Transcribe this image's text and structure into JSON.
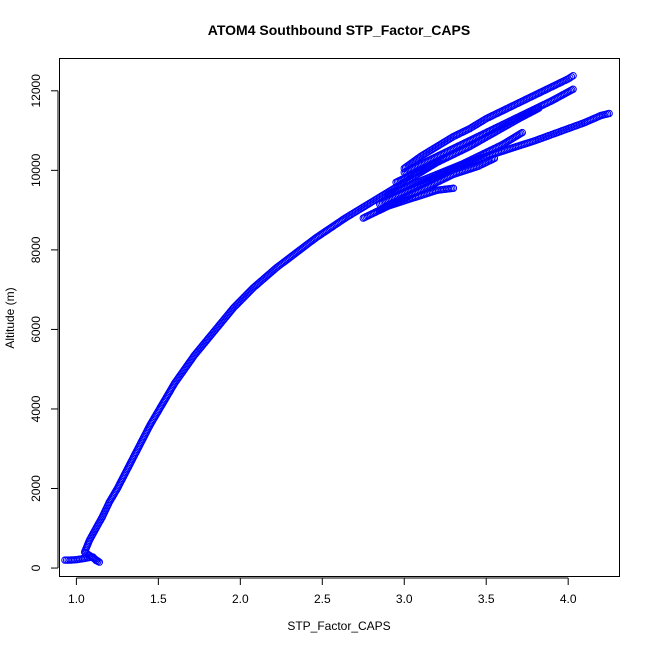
{
  "chart_data": {
    "type": "scatter",
    "title": "ATOM4 Southbound STP_Factor_CAPS",
    "xlabel": "STP_Factor_CAPS",
    "ylabel": "Altitude (m)",
    "xlim": [
      0.9,
      4.31
    ],
    "ylim": [
      -200,
      12800
    ],
    "xticks": [
      1.0,
      1.5,
      2.0,
      2.5,
      3.0,
      3.5,
      4.0
    ],
    "xtick_labels": [
      "1.0",
      "1.5",
      "2.0",
      "2.5",
      "3.0",
      "3.5",
      "4.0"
    ],
    "yticks": [
      0,
      2000,
      4000,
      6000,
      8000,
      10000,
      12000
    ],
    "ytick_labels": [
      "0",
      "2000",
      "4000",
      "6000",
      "8000",
      "10000",
      "12000"
    ],
    "marker": "open-circle",
    "color": "#0000ff",
    "grid": false,
    "series": [
      {
        "x": [
          0.93,
          0.96,
          1.0,
          1.03,
          1.06,
          1.1,
          1.12,
          1.14,
          1.05,
          1.08,
          1.12,
          1.16,
          1.2,
          1.25,
          1.3,
          1.35,
          1.4,
          1.45,
          1.5,
          1.55,
          1.6,
          1.66,
          1.72,
          1.78,
          1.84,
          1.9,
          1.96,
          2.02,
          2.08,
          2.15,
          2.22,
          2.3,
          2.38,
          2.46,
          2.55,
          2.64,
          2.74,
          2.84,
          2.94,
          3.04,
          3.14,
          3.24
        ],
        "y": [
          200,
          200,
          210,
          230,
          250,
          280,
          190,
          150,
          400,
          700,
          1000,
          1300,
          1650,
          2000,
          2400,
          2800,
          3200,
          3600,
          3950,
          4300,
          4650,
          5000,
          5350,
          5650,
          5950,
          6250,
          6550,
          6800,
          7050,
          7300,
          7550,
          7800,
          8050,
          8300,
          8550,
          8800,
          9050,
          9300,
          9550,
          9800,
          10050,
          10300
        ]
      },
      {
        "x": [
          3.0,
          3.1,
          3.2,
          3.3,
          3.4,
          3.5,
          3.6,
          3.7,
          3.8,
          3.9,
          4.0,
          4.03
        ],
        "y": [
          10050,
          10350,
          10600,
          10850,
          11050,
          11300,
          11500,
          11700,
          11900,
          12100,
          12300,
          12380
        ]
      },
      {
        "x": [
          3.0,
          3.15,
          3.3,
          3.45,
          3.6,
          3.75,
          3.9,
          4.03
        ],
        "y": [
          9950,
          10250,
          10550,
          10850,
          11150,
          11450,
          11750,
          12040
        ]
      },
      {
        "x": [
          2.95,
          3.1,
          3.25,
          3.4,
          3.55,
          3.7,
          3.82
        ],
        "y": [
          9700,
          10000,
          10300,
          10600,
          10950,
          11300,
          11560
        ]
      },
      {
        "x": [
          2.9,
          3.05,
          3.2,
          3.35,
          3.5,
          3.65,
          3.8,
          3.9,
          4.0,
          4.1,
          4.2,
          4.25
        ],
        "y": [
          9400,
          9650,
          9900,
          10150,
          10350,
          10550,
          10750,
          10900,
          11050,
          11200,
          11380,
          11430
        ]
      },
      {
        "x": [
          2.85,
          3.0,
          3.15,
          3.3,
          3.45,
          3.6,
          3.72
        ],
        "y": [
          9150,
          9450,
          9750,
          10050,
          10350,
          10650,
          10950
        ]
      },
      {
        "x": [
          2.85,
          3.0,
          3.15,
          3.3,
          3.45,
          3.55
        ],
        "y": [
          9000,
          9300,
          9600,
          9900,
          10100,
          10300
        ]
      },
      {
        "x": [
          2.75,
          2.9,
          3.05,
          3.2,
          3.3
        ],
        "y": [
          8800,
          9100,
          9300,
          9500,
          9550
        ]
      }
    ]
  }
}
